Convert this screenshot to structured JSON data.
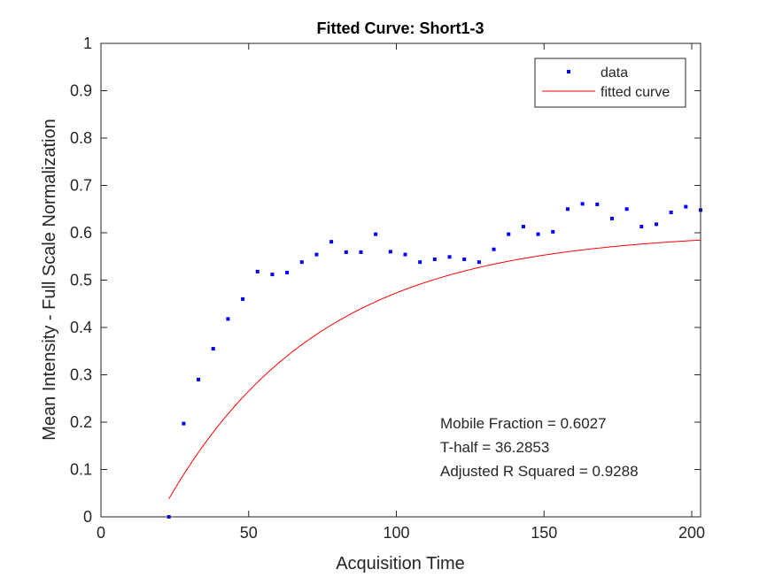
{
  "chart_data": {
    "type": "scatter",
    "title": "Fitted Curve: Short1-3",
    "xlabel": "Acquisition Time",
    "ylabel": "Mean Intensity - Full Scale Normalization",
    "xlim": [
      0,
      203
    ],
    "ylim": [
      0,
      1
    ],
    "xticks": [
      0,
      50,
      100,
      150,
      200
    ],
    "yticks": [
      0,
      0.1,
      0.2,
      0.3,
      0.4,
      0.5,
      0.6,
      0.7,
      0.8,
      0.9,
      1
    ],
    "xtick_labels": [
      "0",
      "50",
      "100",
      "150",
      "200"
    ],
    "ytick_labels": [
      "0",
      "0.1",
      "0.2",
      "0.3",
      "0.4",
      "0.5",
      "0.6",
      "0.7",
      "0.8",
      "0.9",
      "1"
    ],
    "grid": false,
    "legend": {
      "placement": "top-right",
      "entries": [
        "data",
        "fitted curve"
      ]
    },
    "series": [
      {
        "name": "data",
        "style": "markers",
        "color": "#0000ff",
        "x": [
          23,
          28,
          33,
          38,
          43,
          48,
          53,
          58,
          63,
          68,
          73,
          78,
          83,
          88,
          93,
          98,
          103,
          108,
          113,
          118,
          123,
          128,
          133,
          138,
          143,
          148,
          153,
          158,
          163,
          168,
          173,
          178,
          183,
          188,
          193,
          198,
          203
        ],
        "y": [
          0.0,
          0.197,
          0.29,
          0.355,
          0.418,
          0.46,
          0.518,
          0.512,
          0.516,
          0.538,
          0.554,
          0.581,
          0.559,
          0.559,
          0.597,
          0.56,
          0.554,
          0.538,
          0.544,
          0.549,
          0.544,
          0.538,
          0.565,
          0.597,
          0.613,
          0.597,
          0.602,
          0.65,
          0.661,
          0.66,
          0.63,
          0.65,
          0.613,
          0.618,
          0.643,
          0.655,
          0.648
        ]
      },
      {
        "name": "fitted curve",
        "style": "line",
        "color": "#ff0000",
        "model": {
          "plateau": 0.6027,
          "t_half": 36.2853,
          "t0": 23,
          "y0": 0.038
        },
        "x_range": [
          23,
          203
        ]
      }
    ],
    "annotations": [
      "Mobile Fraction = 0.6027",
      "T-half = 36.2853",
      "Adjusted R Squared = 0.9288"
    ]
  }
}
